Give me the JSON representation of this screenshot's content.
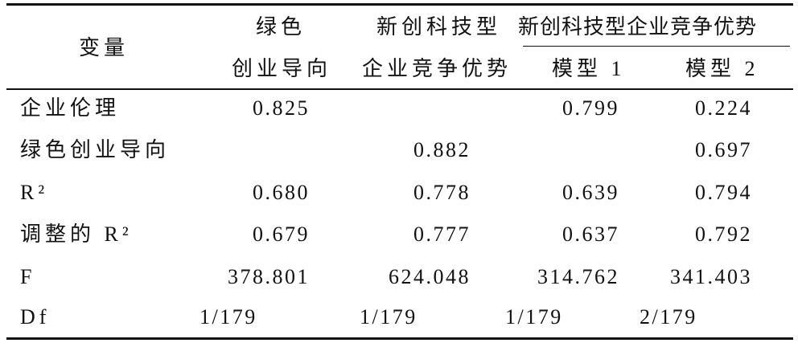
{
  "table": {
    "header": {
      "variable": "变量",
      "col1": [
        "绿色",
        "创业导向"
      ],
      "col2": [
        "新创科技型",
        "企业竞争优势"
      ],
      "group": "新创科技型企业竞争优势",
      "models": [
        "模型 1",
        "模型 2"
      ]
    },
    "rows": [
      [
        "企业伦理",
        "0.825",
        null,
        "0.799",
        "0.224"
      ],
      [
        "绿色创业导向",
        null,
        "0.882",
        null,
        "0.697"
      ],
      [
        "R²",
        "0.680",
        "0.778",
        "0.639",
        "0.794"
      ],
      [
        "调整的 R²",
        "0.679",
        "0.777",
        "0.637",
        "0.792"
      ],
      [
        "F",
        "378.801",
        "624.048",
        "314.762",
        "341.403"
      ],
      [
        "Df",
        "1/179",
        "1/179",
        "1/179",
        "2/179"
      ]
    ]
  }
}
